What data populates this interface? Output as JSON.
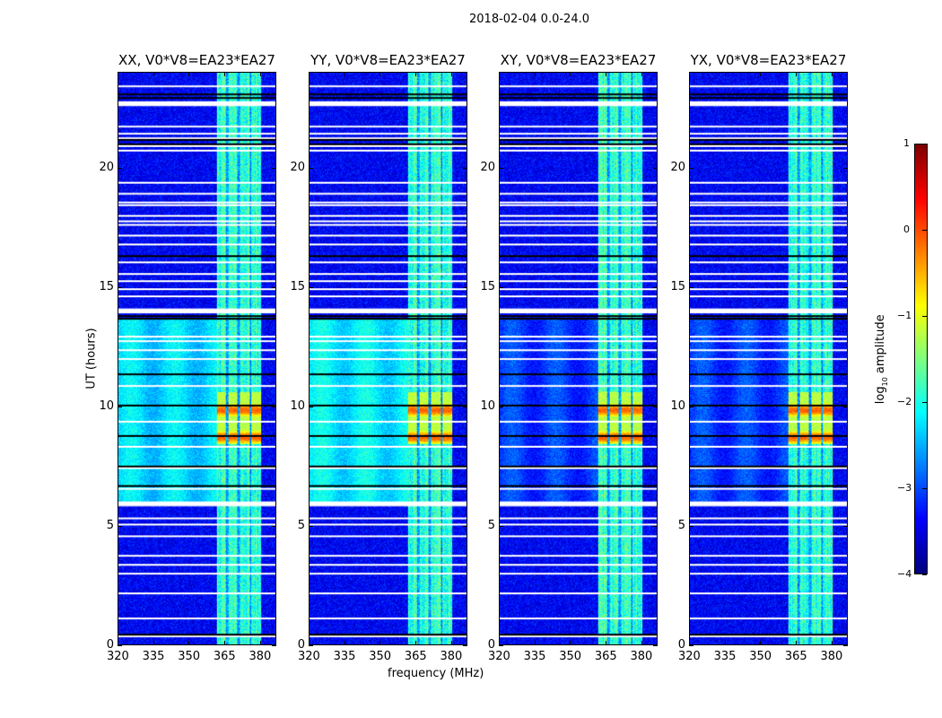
{
  "chart_data": {
    "type": "heatmap",
    "title": "2018-02-04 0.0-24.0",
    "xlabel": "frequency (MHz)",
    "ylabel": "UT (hours)",
    "xlim": [
      320,
      387
    ],
    "ylim": [
      0,
      24
    ],
    "xticks": [
      320,
      335,
      350,
      365,
      380
    ],
    "xtick_labels": [
      "320",
      "335",
      "350",
      "365",
      "380"
    ],
    "yticks": [
      0,
      5,
      10,
      15,
      20
    ],
    "ytick_labels": [
      "0",
      "5",
      "10",
      "15",
      "20"
    ],
    "panels": [
      {
        "title": "XX, V0*V8=EA23*EA27",
        "polarization": "XX",
        "bright_interval_level": -2.3
      },
      {
        "title": "YY, V0*V8=EA23*EA27",
        "polarization": "YY",
        "bright_interval_level": -2.2
      },
      {
        "title": "XY, V0*V8=EA23*EA27",
        "polarization": "XY",
        "bright_interval_level": -3.1
      },
      {
        "title": "YX, V0*V8=EA23*EA27",
        "polarization": "YX",
        "bright_interval_level": -3.1
      }
    ],
    "background_level": -3.4,
    "bright_interval_hours": [
      5.9,
      13.7
    ],
    "rfi_bands_mhz": [
      [
        362,
        366
      ],
      [
        367,
        371
      ],
      [
        372,
        376
      ],
      [
        377,
        381
      ]
    ],
    "rfi_level": -1.9,
    "burst": {
      "hours": [
        8.4,
        10.6
      ],
      "mhz": [
        362,
        381
      ],
      "peak_level": 0.0
    },
    "flagged_rows_hours": [
      23.43,
      22.7,
      21.74,
      21.44,
      21.25,
      20.92,
      20.73,
      19.38,
      18.92,
      18.55,
      18.44,
      17.99,
      17.76,
      17.61,
      17.16,
      16.79,
      16.04,
      15.55,
      15.25,
      14.91,
      14.61,
      14.0,
      12.92,
      12.73,
      12.35,
      11.98,
      10.85,
      9.35,
      8.3,
      7.4,
      6.53,
      5.9,
      5.29,
      5.03,
      4.54,
      3.72,
      3.34,
      2.97,
      2.14,
      1.09,
      0.34
    ],
    "thick_flagged_rows_hours": [
      [
        22.6,
        22.8
      ],
      [
        13.9,
        14.1
      ],
      [
        5.8,
        6.0
      ]
    ],
    "dark_rows_hours": [
      23.09,
      22.94,
      21.18,
      21.0,
      16.3,
      13.78,
      13.67,
      11.34,
      10.03,
      8.75,
      7.47,
      6.65,
      0.41
    ],
    "colorbar": {
      "label": "log",
      "label_sub": "10",
      "label_rest": " amplitude",
      "colormap": "jet",
      "range": [
        -4,
        1
      ],
      "ticks": [
        1,
        0,
        -1,
        -2,
        -3,
        -4
      ],
      "tick_labels": [
        "1",
        "0",
        "−1",
        "−2",
        "−3",
        "−4"
      ]
    }
  }
}
